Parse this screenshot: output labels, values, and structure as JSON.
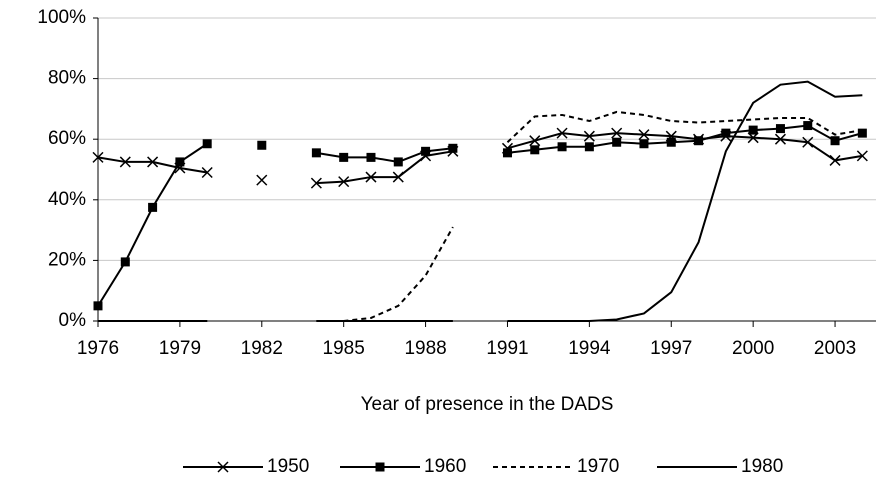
{
  "chart_data": {
    "type": "line",
    "x_label": "Year of presence in the DADS",
    "x": [
      1976,
      1977,
      1978,
      1979,
      1980,
      1981,
      1982,
      1983,
      1984,
      1985,
      1986,
      1987,
      1988,
      1989,
      1990,
      1991,
      1992,
      1993,
      1994,
      1995,
      1996,
      1997,
      1998,
      1999,
      2000,
      2001,
      2002,
      2003,
      2004
    ],
    "series": [
      {
        "name": "1950",
        "color": "#000000",
        "dash": false,
        "marker": "x",
        "values": [
          54,
          52.5,
          52.5,
          50.5,
          49,
          null,
          46.5,
          null,
          45.5,
          46,
          47.5,
          47.5,
          54.5,
          56,
          null,
          57,
          59.5,
          62,
          61,
          62,
          61.5,
          61,
          60,
          61,
          60.5,
          60,
          59,
          53,
          54.5
        ]
      },
      {
        "name": "1960",
        "color": "#000000",
        "dash": false,
        "marker": "square",
        "values": [
          5,
          19.5,
          37.5,
          52.5,
          58.5,
          null,
          58,
          null,
          55.5,
          54,
          54,
          52.5,
          56,
          57,
          null,
          55.5,
          56.5,
          57.5,
          57.5,
          59,
          58.5,
          59,
          59.5,
          62,
          63,
          63.5,
          64.5,
          59.5,
          62
        ]
      },
      {
        "name": "1970",
        "color": "#000000",
        "dash": true,
        "marker": "none",
        "values": [
          0,
          0,
          0,
          0,
          0,
          null,
          null,
          null,
          0,
          0,
          1,
          5,
          15,
          31,
          null,
          59,
          67.5,
          68,
          66,
          69,
          68,
          66,
          65.5,
          66,
          66.5,
          67,
          67,
          61.5,
          63
        ]
      },
      {
        "name": "1980",
        "color": "#000000",
        "dash": false,
        "marker": "none",
        "values": [
          0,
          0,
          0,
          0,
          0,
          null,
          null,
          null,
          0,
          0,
          0,
          0,
          0,
          0,
          null,
          0,
          0,
          0,
          0,
          0.5,
          2.5,
          9.5,
          26,
          56,
          72,
          78,
          79,
          74,
          74.5
        ]
      }
    ],
    "xlim": [
      1976,
      2004.5
    ],
    "xticks": [
      1976,
      1979,
      1982,
      1985,
      1988,
      1991,
      1994,
      1997,
      2000,
      2003
    ],
    "ylim": [
      0,
      100
    ],
    "yticks": [
      {
        "value": 0,
        "label": "0%"
      },
      {
        "value": 20,
        "label": "20%"
      },
      {
        "value": 40,
        "label": "40%"
      },
      {
        "value": 60,
        "label": "60%"
      },
      {
        "value": 80,
        "label": "80%"
      },
      {
        "value": 100,
        "label": "100%"
      }
    ],
    "grid": true,
    "legend": "bottom"
  }
}
